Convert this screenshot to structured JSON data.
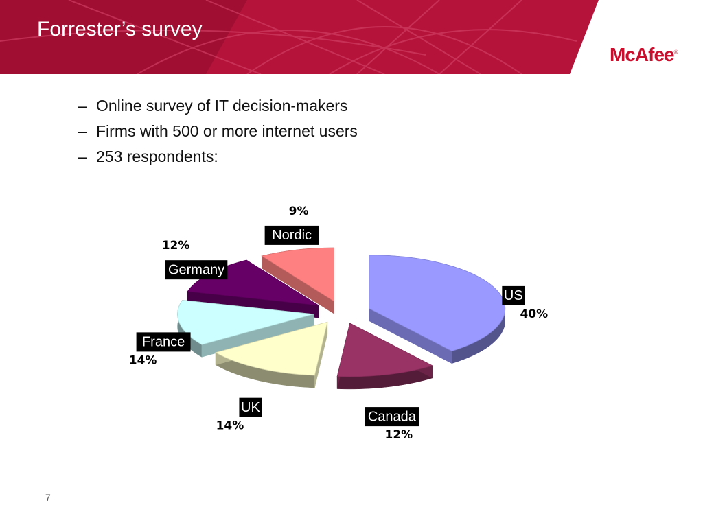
{
  "slide": {
    "title": "Forrester’s survey",
    "logo_text": "McAfee",
    "logo_mark": "®",
    "page_number": "7",
    "header_color": "#b5133a"
  },
  "bullets": [
    "Online survey of IT decision-makers",
    "Firms with 500 or more internet users",
    "253 respondents:"
  ],
  "chart_data": {
    "type": "pie",
    "style": "3d-exploded",
    "legend": "none",
    "slices": [
      {
        "label": "US",
        "value": 40,
        "pct_label": "40%",
        "color": "#9999ff"
      },
      {
        "label": "Canada",
        "value": 12,
        "pct_label": "12%",
        "color": "#993366"
      },
      {
        "label": "UK",
        "value": 14,
        "pct_label": "14%",
        "color": "#ffffcc"
      },
      {
        "label": "France",
        "value": 14,
        "pct_label": "14%",
        "color": "#ccffff"
      },
      {
        "label": "Germany",
        "value": 12,
        "pct_label": "12%",
        "color": "#660066"
      },
      {
        "label": "Nordic",
        "value": 9,
        "pct_label": "9%",
        "color": "#ff8080"
      }
    ]
  }
}
